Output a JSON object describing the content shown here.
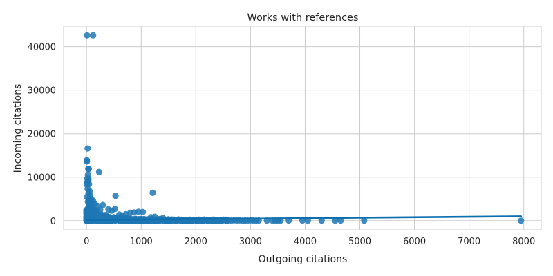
{
  "chart_data": {
    "type": "scatter",
    "title": "Works with references",
    "xlabel": "Outgoing citations",
    "ylabel": "Incoming citations",
    "xlim": [
      -420,
      8320
    ],
    "ylim": [
      -2100,
      44700
    ],
    "xticks": [
      0,
      1000,
      2000,
      3000,
      4000,
      5000,
      6000,
      7000,
      8000
    ],
    "yticks": [
      0,
      10000,
      20000,
      30000,
      40000
    ],
    "grid": true,
    "legend": "none",
    "colors": {
      "points": "#1f77b4",
      "fit_line": "#0e6fae",
      "grid": "#cccccc",
      "frame": "#cccccc"
    },
    "regression_line": {
      "x": [
        0,
        7950
      ],
      "y": [
        150,
        1000
      ]
    },
    "points": [
      [
        10,
        42600
      ],
      [
        120,
        42600
      ],
      [
        20,
        16600
      ],
      [
        5,
        13900
      ],
      [
        8,
        13600
      ],
      [
        30,
        11900
      ],
      [
        40,
        11900
      ],
      [
        230,
        11200
      ],
      [
        25,
        10500
      ],
      [
        15,
        9700
      ],
      [
        35,
        9500
      ],
      [
        20,
        9100
      ],
      [
        10,
        8700
      ],
      [
        45,
        8400
      ],
      [
        5,
        8300
      ],
      [
        1210,
        6400
      ],
      [
        530,
        5700
      ],
      [
        20,
        7300
      ],
      [
        55,
        6800
      ],
      [
        35,
        6300
      ],
      [
        70,
        5800
      ],
      [
        10,
        5500
      ],
      [
        90,
        5000
      ],
      [
        40,
        4800
      ],
      [
        120,
        4500
      ],
      [
        25,
        4400
      ],
      [
        60,
        4100
      ],
      [
        150,
        3900
      ],
      [
        300,
        3600
      ],
      [
        200,
        3400
      ],
      [
        100,
        3200
      ],
      [
        30,
        3000
      ],
      [
        80,
        2900
      ],
      [
        400,
        2600
      ],
      [
        520,
        2700
      ],
      [
        460,
        2300
      ],
      [
        250,
        2500
      ],
      [
        180,
        2400
      ],
      [
        140,
        2200
      ],
      [
        60,
        2100
      ],
      [
        950,
        2050
      ],
      [
        1030,
        2000
      ],
      [
        870,
        1900
      ],
      [
        800,
        1800
      ],
      [
        720,
        1500
      ],
      [
        600,
        1400
      ],
      [
        650,
        1200
      ],
      [
        350,
        1300
      ],
      [
        200,
        1200
      ],
      [
        120,
        1100
      ],
      [
        1180,
        800
      ],
      [
        1250,
        900
      ],
      [
        1400,
        600
      ],
      [
        1350,
        400
      ],
      [
        500,
        800
      ],
      [
        300,
        900
      ],
      [
        420,
        700
      ],
      [
        1500,
        300
      ],
      [
        1600,
        250
      ],
      [
        1700,
        200
      ],
      [
        1800,
        150
      ],
      [
        1900,
        180
      ],
      [
        2000,
        120
      ],
      [
        2100,
        160
      ],
      [
        2200,
        100
      ],
      [
        2300,
        130
      ],
      [
        2400,
        90
      ],
      [
        2500,
        110
      ],
      [
        2600,
        80
      ],
      [
        2700,
        70
      ],
      [
        2800,
        60
      ],
      [
        2900,
        40
      ],
      [
        3000,
        50
      ],
      [
        3050,
        30
      ],
      [
        3100,
        20
      ],
      [
        3150,
        40
      ],
      [
        3300,
        30
      ],
      [
        3400,
        20
      ],
      [
        3450,
        15
      ],
      [
        3500,
        10
      ],
      [
        3550,
        20
      ],
      [
        3700,
        30
      ],
      [
        3950,
        20
      ],
      [
        4050,
        10
      ],
      [
        4300,
        20
      ],
      [
        4550,
        10
      ],
      [
        4650,
        20
      ],
      [
        5080,
        15
      ],
      [
        7950,
        10
      ],
      [
        10,
        300
      ],
      [
        20,
        600
      ],
      [
        30,
        900
      ],
      [
        40,
        1200
      ],
      [
        50,
        1500
      ],
      [
        60,
        1800
      ],
      [
        70,
        100
      ],
      [
        80,
        400
      ],
      [
        90,
        700
      ],
      [
        100,
        200
      ],
      [
        110,
        500
      ],
      [
        130,
        800
      ],
      [
        160,
        300
      ],
      [
        170,
        600
      ],
      [
        190,
        150
      ],
      [
        210,
        450
      ],
      [
        220,
        900
      ],
      [
        240,
        300
      ],
      [
        260,
        600
      ],
      [
        280,
        200
      ],
      [
        320,
        400
      ],
      [
        340,
        150
      ],
      [
        360,
        500
      ],
      [
        380,
        250
      ],
      [
        440,
        350
      ],
      [
        480,
        200
      ],
      [
        540,
        450
      ],
      [
        560,
        300
      ],
      [
        580,
        150
      ],
      [
        620,
        250
      ],
      [
        680,
        350
      ],
      [
        740,
        200
      ],
      [
        760,
        120
      ],
      [
        820,
        250
      ],
      [
        880,
        150
      ],
      [
        920,
        300
      ],
      [
        980,
        180
      ],
      [
        1050,
        120
      ],
      [
        1100,
        250
      ],
      [
        1150,
        160
      ],
      [
        1220,
        100
      ],
      [
        1280,
        200
      ],
      [
        1320,
        80
      ],
      [
        1450,
        150
      ],
      [
        1550,
        60
      ],
      [
        1650,
        110
      ],
      [
        1750,
        50
      ],
      [
        1850,
        90
      ],
      [
        1950,
        40
      ],
      [
        2050,
        70
      ],
      [
        2150,
        30
      ],
      [
        2250,
        60
      ],
      [
        2350,
        20
      ],
      [
        2450,
        50
      ],
      [
        2550,
        30
      ],
      [
        2650,
        20
      ],
      [
        2750,
        40
      ],
      [
        2850,
        10
      ],
      [
        2950,
        20
      ],
      [
        5,
        100
      ],
      [
        15,
        500
      ],
      [
        25,
        1500
      ],
      [
        35,
        2500
      ],
      [
        45,
        3500
      ],
      [
        55,
        4500
      ],
      [
        65,
        3800
      ],
      [
        75,
        2800
      ],
      [
        85,
        1800
      ],
      [
        95,
        800
      ],
      [
        105,
        1400
      ],
      [
        115,
        2000
      ],
      [
        125,
        2600
      ],
      [
        135,
        1600
      ],
      [
        145,
        1000
      ],
      [
        155,
        2000
      ],
      [
        165,
        1300
      ],
      [
        175,
        700
      ],
      [
        185,
        1100
      ]
    ]
  }
}
